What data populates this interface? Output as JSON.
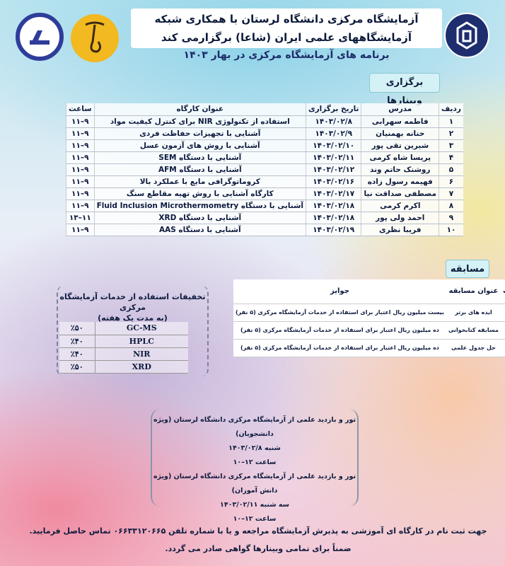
{
  "logos": {
    "left_lab": "آزمایشگاه مرکزی دانشگاه لرستان",
    "middle": "شاعا",
    "right": "دانشگاه لرستان"
  },
  "header": {
    "line1": "آزمایشگاه مرکزی دانشگاه لرستان با همکاری شبکه",
    "line2": "آزمایشگاههای علمی ایران (شاعا) برگزارمی کند",
    "subtitle": "برنامه های آزمایشگاه مرکزی در بهار ۱۴۰۳"
  },
  "webinars": {
    "label": "برگزاری وبینارها",
    "columns": [
      "ردیف",
      "مدرس",
      "تاریخ برگزاری",
      "عنوان کارگاه",
      "ساعت"
    ],
    "rows": [
      [
        "۱",
        "فاطمه سهرابی",
        "۱۴۰۳/۰۲/۸",
        "استفاده از تکنولوژی NIR برای کنترل کیفیت مواد",
        "۹–۱۱"
      ],
      [
        "۲",
        "حنانه بهمنیان",
        "۱۴۰۳/۰۲/۹",
        "آشنایی با تجهیزات حفاظت فردی",
        "۹–۱۱"
      ],
      [
        "۳",
        "شیرین تقی پور",
        "۱۴۰۳/۰۲/۱۰",
        "آشنایی با روش های آزمون عسل",
        "۹–۱۱"
      ],
      [
        "۴",
        "پریسا شاه کرمی",
        "۱۴۰۳/۰۲/۱۱",
        "آشنایی با دستگاه SEM",
        "۹–۱۱"
      ],
      [
        "۵",
        "روشنک حاتم وند",
        "۱۴۰۳/۰۲/۱۲",
        "آشنایی با دستگاه AFM",
        "۹–۱۱"
      ],
      [
        "۶",
        "فهیمه رسول زاده",
        "۱۴۰۳/۰۲/۱۶",
        "کروماتوگرافی مایع با عملکرد بالا",
        "۹–۱۱"
      ],
      [
        "۷",
        "مصطفی صداقت نیا",
        "۱۴۰۳/۰۲/۱۷",
        "کارگاه آشنایی با روش تهیه مقاطع سنگ",
        "۹–۱۱"
      ],
      [
        "۸",
        "اکرم کرمی",
        "۱۴۰۳/۰۲/۱۸",
        "آشنایی با دستگاه Fluid Inclusion Microthermometry",
        "۹–۱۱"
      ],
      [
        "۹",
        "احمد ولی پور",
        "۱۴۰۳/۰۲/۱۸",
        "آشنایی با دستگاه XRD",
        "۱۱–۱۳"
      ],
      [
        "۱۰",
        "فریبا نظری",
        "۱۴۰۳/۰۲/۱۹",
        "آشنایی با دستگاه AAS",
        "۹–۱۱"
      ]
    ]
  },
  "competition": {
    "label": "مسابقه",
    "columns": [
      "ردیف",
      "عنوان مسابقه",
      "جوایز"
    ],
    "rows": [
      [
        "۱",
        "ایده های برتر",
        "بیست میلیون ریال اعتبار برای استفاده از خدمات آزمایشگاه مرکزی (۵ نفر)"
      ],
      [
        "۲",
        "مسابقه کتابخوانی",
        "ده میلیون ریال اعتبار برای استفاده از خدمات آزمایشگاه مرکزی (۵ نفر)"
      ],
      [
        "۳",
        "حل جدول علمی",
        "ده میلیون ریال اعتبار برای استفاده از خدمات آزمایشگاه مرکزی (۵ نفر)"
      ]
    ]
  },
  "discounts": {
    "title": "تخفیفات استفاده از خدمات آزمایشگاه مرکزی",
    "subtitle": "(به مدت یک هفته)",
    "rows": [
      [
        "GC-MS",
        "٪۵۰"
      ],
      [
        "HPLC",
        "٪۴۰"
      ],
      [
        "NIR",
        "٪۴۰"
      ],
      [
        "XRD",
        "٪۵۰"
      ]
    ]
  },
  "tours": [
    "تور و بازدید علمی از آزمایشگاه مرکزی دانشگاه لرستان (ویژه دانشجویان)",
    "شنبه ۱۴۰۳/۰۲/۸",
    "ساعت ۱۲–۱۰",
    "تور و بازدید علمی از آزمایشگاه مرکزی دانشگاه لرستان (ویژه دانش آموزان)",
    "سه شنبه ۱۴۰۳/۰۲/۱۱",
    "ساعت ۱۲–۱۰"
  ],
  "footer": {
    "line1": "جهت ثبت نام در کارگاه ای آموزشی به پذیرش آزمایشگاه مراجعه و یا با شماره تلفن ۰۶۶۳۳۱۲۰۶۶۵ تماس حاصل فرمایید.",
    "line2": "ضمناً برای تمامی وبینارها گواهی صادر می گردد."
  }
}
